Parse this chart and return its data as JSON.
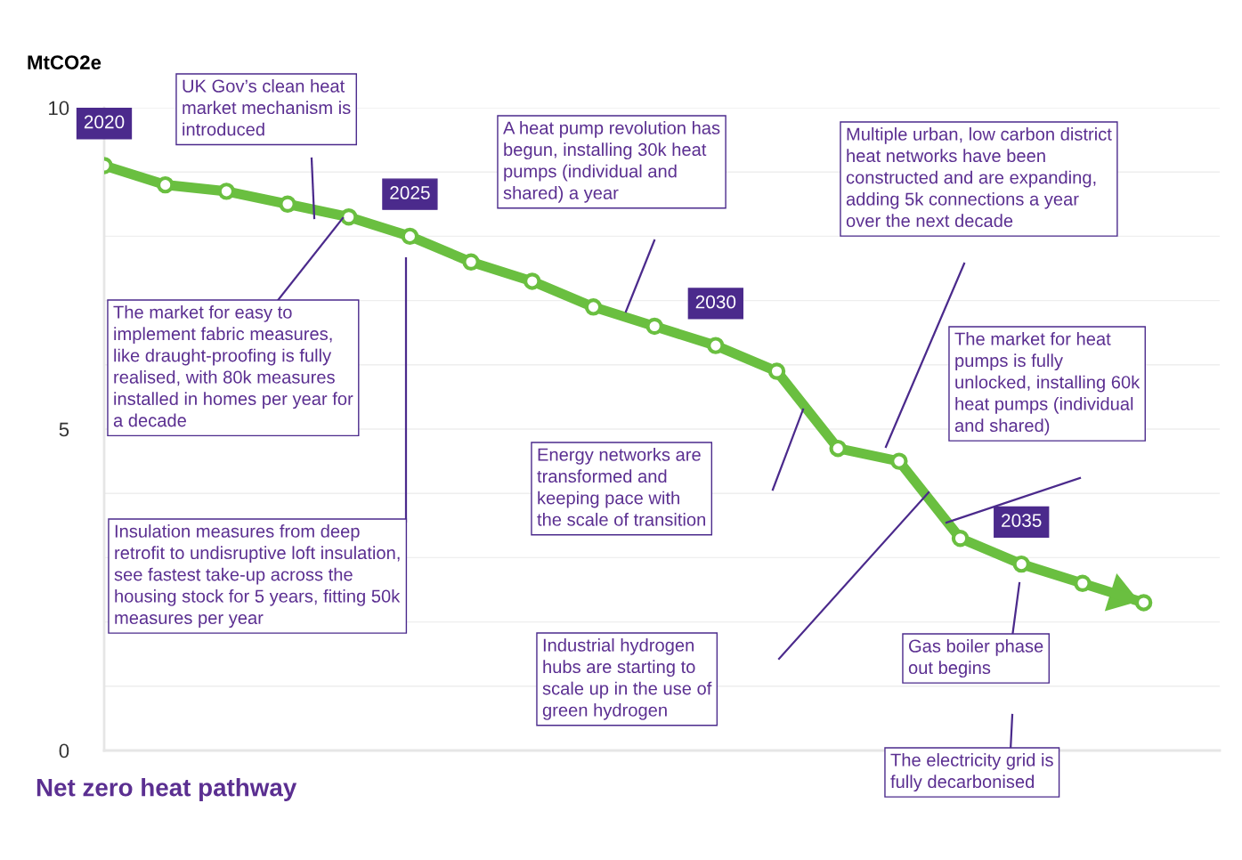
{
  "chart_data": {
    "type": "line",
    "title": "Net zero heat pathway",
    "ylabel": "MtCO2e",
    "categories": [
      null,
      null,
      null,
      null,
      null,
      null,
      null,
      null,
      null,
      null,
      null,
      null,
      null,
      null,
      null,
      null,
      null,
      null
    ],
    "series": [
      {
        "color": "#6abf40",
        "values": [
          9.1,
          8.8,
          8.7,
          8.5,
          8.3,
          8.0,
          7.6,
          7.3,
          6.9,
          6.6,
          6.3,
          5.9,
          4.7,
          4.5,
          3.3,
          2.9,
          2.6,
          2.3
        ]
      }
    ],
    "ylim": [
      0,
      10
    ],
    "yticks": [
      0,
      {
        "value": 1,
        "label": null
      },
      {
        "value": 2,
        "label": null
      },
      {
        "value": 3,
        "label": null
      },
      {
        "value": 4,
        "label": null
      },
      5,
      {
        "value": 6,
        "label": null
      },
      {
        "value": 7,
        "label": null
      },
      {
        "value": 8,
        "label": null
      },
      {
        "value": 9,
        "label": null
      },
      10
    ],
    "grid": "y",
    "marker": "circle",
    "tick_labels": "y",
    "annotations": [
      "2020",
      "2025",
      "2030",
      "2035",
      "UK Gov’s clean heat\nmarket mechanism is\nintroduced",
      "The market for easy to\nimplement fabric measures,\nlike draught-proofing is fully\nrealised, with 80k measures\ninstalled in homes per year for\na decade",
      "Insulation measures from deep\nretrofit to undisruptive loft insulation,\nsee fastest take-up across the\nhousing stock for 5 years, fitting 50k\nmeasures per year",
      "A heat pump revolution has\nbegun, installing 30k heat\npumps (individual and\nshared) a year",
      "Energy networks are\ntransformed and\nkeeping pace with\nthe scale of transition",
      "Industrial hydrogen\nhubs are starting to\nscale up in the use of\ngreen hydrogen",
      "Multiple urban, low carbon district\nheat networks have been\nconstructed and are expanding,\nadding 5k connections a year\nover the next decade",
      "The market for heat\npumps is fully\nunlocked, installing 60k\nheat pumps (individual\nand shared)",
      "Gas boiler phase\nout begins",
      "The electricity grid is\nfully decarbonised"
    ]
  }
}
